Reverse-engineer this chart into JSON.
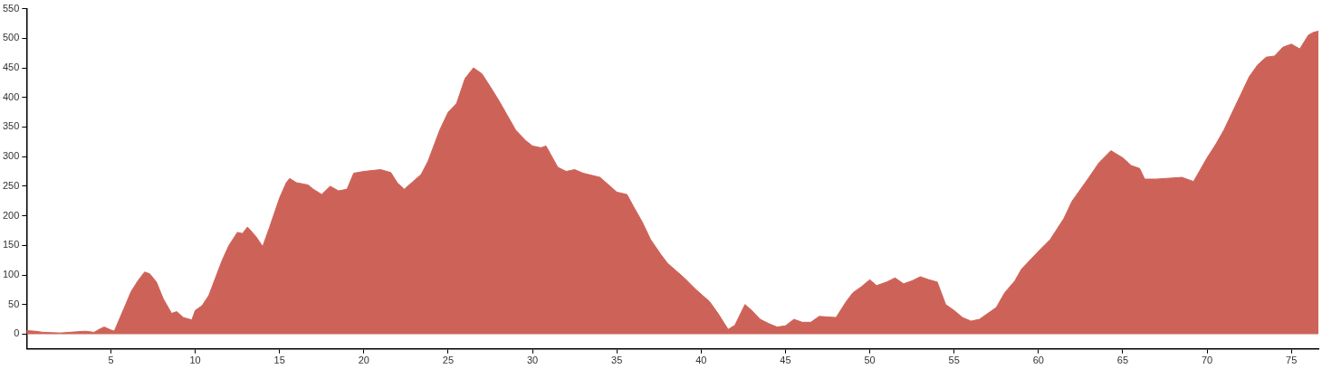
{
  "chart_data": {
    "type": "area",
    "color": "#cd6358",
    "xlim": [
      0,
      76.6
    ],
    "ylim": [
      -25,
      550
    ],
    "xticks": [
      5,
      10,
      15,
      20,
      25,
      30,
      35,
      40,
      45,
      50,
      55,
      60,
      65,
      70,
      75
    ],
    "yticks": [
      0,
      50,
      100,
      150,
      200,
      250,
      300,
      350,
      400,
      450,
      500,
      550
    ],
    "grid": false,
    "legend": false,
    "marker": "none",
    "x": [
      0,
      0.5,
      1,
      2,
      3,
      3.5,
      4,
      4.3,
      4.6,
      5,
      5.2,
      5.5,
      5.8,
      6.2,
      6.6,
      7,
      7.3,
      7.7,
      8.1,
      8.6,
      8.9,
      9.3,
      9.8,
      10,
      10.4,
      10.8,
      11.2,
      11.6,
      12,
      12.5,
      12.8,
      13.1,
      13.6,
      14,
      14.4,
      15,
      15.4,
      15.6,
      16,
      16.7,
      17,
      17.5,
      18,
      18.5,
      19,
      19.4,
      20,
      21,
      21.6,
      22,
      22.4,
      23,
      23.4,
      23.8,
      24.5,
      25,
      25.5,
      26,
      26.5,
      27,
      27.5,
      28,
      28.6,
      29,
      29.6,
      30,
      30.5,
      30.8,
      31.5,
      32,
      32.5,
      33,
      34,
      34.4,
      35,
      35.6,
      36,
      36.5,
      37,
      37.6,
      38,
      39,
      39.7,
      40.5,
      41,
      41.6,
      42,
      42.6,
      43,
      43.5,
      44,
      44.5,
      45,
      45.5,
      46,
      46.5,
      47,
      48,
      48.6,
      49,
      49.5,
      50,
      50.4,
      51,
      51.5,
      52,
      52.5,
      53,
      53.5,
      54,
      54.5,
      55,
      55.5,
      56,
      56.5,
      57,
      57.5,
      58,
      58.6,
      59,
      59.6,
      60,
      60.7,
      61.5,
      62,
      62.5,
      63,
      63.6,
      64.3,
      65,
      65.5,
      66,
      66.3,
      67,
      68,
      68.5,
      69.2,
      70,
      70.5,
      71,
      71.5,
      72,
      72.5,
      73,
      73.5,
      74,
      74.5,
      75,
      75.5,
      76,
      76.3,
      76.6
    ],
    "values": [
      6,
      5,
      3,
      2,
      4,
      5,
      3,
      8,
      12,
      7,
      5,
      25,
      45,
      72,
      90,
      105,
      102,
      88,
      60,
      35,
      38,
      28,
      24,
      40,
      48,
      65,
      95,
      125,
      150,
      172,
      170,
      181,
      165,
      148,
      180,
      230,
      256,
      263,
      256,
      252,
      245,
      236,
      250,
      242,
      245,
      272,
      275,
      278,
      273,
      255,
      245,
      260,
      270,
      292,
      345,
      375,
      390,
      432,
      450,
      440,
      418,
      395,
      365,
      345,
      327,
      318,
      315,
      318,
      282,
      275,
      278,
      272,
      265,
      255,
      240,
      236,
      215,
      190,
      160,
      135,
      120,
      95,
      75,
      55,
      35,
      8,
      15,
      50,
      40,
      25,
      18,
      12,
      14,
      25,
      20,
      20,
      30,
      28,
      55,
      70,
      80,
      92,
      82,
      88,
      95,
      85,
      90,
      97,
      92,
      88,
      50,
      40,
      28,
      22,
      25,
      35,
      45,
      70,
      90,
      110,
      128,
      140,
      160,
      195,
      225,
      245,
      265,
      290,
      310,
      298,
      285,
      280,
      262,
      262,
      264,
      265,
      258,
      298,
      320,
      345,
      375,
      405,
      435,
      455,
      468,
      470,
      485,
      490,
      482,
      505,
      510,
      512
    ]
  }
}
